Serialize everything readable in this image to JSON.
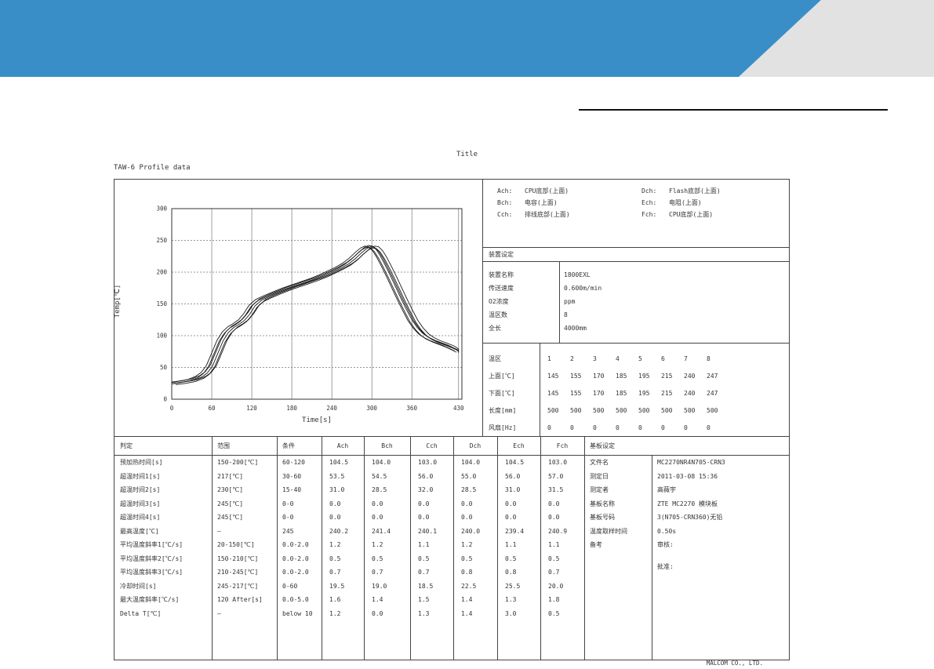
{
  "page": {
    "title": "Title",
    "subtitle": "TAW-6 Profile data",
    "footer": "MALCOM CO., LTD."
  },
  "colors": {
    "banner_blue": "#3a8ec7",
    "banner_gray": "#e2e2e2",
    "line": "#444444",
    "curve": "#1a1a1a"
  },
  "legend": {
    "items": [
      {
        "ch": "Ach:",
        "label": "CPU底部(上面)"
      },
      {
        "ch": "Bch:",
        "label": "电容(上面)"
      },
      {
        "ch": "Cch:",
        "label": "排线底部(上面)"
      },
      {
        "ch": "Dch:",
        "label": "Flash底部(上面)"
      },
      {
        "ch": "Ech:",
        "label": "电阻(上面)"
      },
      {
        "ch": "Fch:",
        "label": "CPU底部(上面)"
      }
    ]
  },
  "device": {
    "title": "装置设定",
    "rows": [
      {
        "label": "装置名称",
        "value": "1800EXL"
      },
      {
        "label": "传送速度",
        "value": "0.600m/min"
      },
      {
        "label": "O2浓度",
        "value": "ppm"
      },
      {
        "label": "温区数",
        "value": "8"
      },
      {
        "label": "全长",
        "value": "4000mm"
      }
    ]
  },
  "zones": {
    "rows": [
      {
        "label": "温区",
        "values": [
          "1",
          "2",
          "3",
          "4",
          "5",
          "6",
          "7",
          "8"
        ]
      },
      {
        "label": "上面[℃]",
        "values": [
          "145",
          "155",
          "170",
          "185",
          "195",
          "215",
          "240",
          "247"
        ]
      },
      {
        "label": "下面[℃]",
        "values": [
          "145",
          "155",
          "170",
          "185",
          "195",
          "215",
          "240",
          "247"
        ]
      },
      {
        "label": "长度[mm]",
        "values": [
          "500",
          "500",
          "500",
          "500",
          "500",
          "500",
          "500",
          "500"
        ]
      },
      {
        "label": "风扇[Hz]",
        "values": [
          "0",
          "0",
          "0",
          "0",
          "0",
          "0",
          "0",
          "0"
        ]
      }
    ]
  },
  "measurements": {
    "headers": [
      "判定",
      "范围",
      "条件",
      "Ach",
      "Bch",
      "Cch",
      "Dch",
      "Ech",
      "Fch"
    ],
    "rows": [
      {
        "label": "预加热时间[s]",
        "range": "150-200[℃]",
        "cond": "60-120",
        "values": [
          "104.5",
          "104.0",
          "103.0",
          "104.0",
          "104.5",
          "103.0"
        ]
      },
      {
        "label": "超温时间1[s]",
        "range": "217[℃]",
        "cond": "30-60",
        "values": [
          "53.5",
          "54.5",
          "56.0",
          "55.0",
          "56.0",
          "57.0"
        ]
      },
      {
        "label": "超温时间2[s]",
        "range": "230[℃]",
        "cond": "15-40",
        "values": [
          "31.0",
          "28.5",
          "32.0",
          "28.5",
          "31.0",
          "31.5"
        ]
      },
      {
        "label": "超温时间3[s]",
        "range": "245[℃]",
        "cond": "0-0",
        "values": [
          "0.0",
          "0.0",
          "0.0",
          "0.0",
          "0.0",
          "0.0"
        ]
      },
      {
        "label": "超温时间4[s]",
        "range": "245[℃]",
        "cond": "0-0",
        "values": [
          "0.0",
          "0.0",
          "0.0",
          "0.0",
          "0.0",
          "0.0"
        ]
      },
      {
        "label": "最高温度[℃]",
        "range": "–",
        "cond": "245",
        "values": [
          "240.2",
          "241.4",
          "240.1",
          "240.0",
          "239.4",
          "240.9"
        ]
      },
      {
        "label": "平均温度斜率1[℃/s]",
        "range": "20-150[℃]",
        "cond": "0.0-2.0",
        "values": [
          "1.2",
          "1.2",
          "1.1",
          "1.2",
          "1.1",
          "1.1"
        ]
      },
      {
        "label": "平均温度斜率2[℃/s]",
        "range": "150-210[℃]",
        "cond": "0.0-2.0",
        "values": [
          "0.5",
          "0.5",
          "0.5",
          "0.5",
          "0.5",
          "0.5"
        ]
      },
      {
        "label": "平均温度斜率3[℃/s]",
        "range": "210-245[℃]",
        "cond": "0.0-2.0",
        "values": [
          "0.7",
          "0.7",
          "0.7",
          "0.8",
          "0.8",
          "0.7"
        ]
      },
      {
        "label": "冷却时间[s]",
        "range": "245-217[℃]",
        "cond": "0-60",
        "values": [
          "19.5",
          "19.0",
          "18.5",
          "22.5",
          "25.5",
          "20.0"
        ]
      },
      {
        "label": "最大温度斜率[℃/s]",
        "range": "120 After[s]",
        "cond": "0.0-5.0",
        "values": [
          "1.6",
          "1.4",
          "1.5",
          "1.4",
          "1.3",
          "1.8"
        ]
      },
      {
        "label": "Delta T[℃]",
        "range": "–",
        "cond": "below 10",
        "values": [
          "1.2",
          "0.0",
          "1.3",
          "1.4",
          "3.0",
          "0.5"
        ]
      }
    ]
  },
  "substrate": {
    "title": "基板设定",
    "rows": [
      {
        "label": "文件名",
        "value": "MC2270NR4N705-CRN3"
      },
      {
        "label": "测定日",
        "value": "2011-03-08  15:36"
      },
      {
        "label": "测定者",
        "value": "高薇宇"
      },
      {
        "label": "基板名称",
        "value": "ZTE MC2270 模块板"
      },
      {
        "label": "基板号码",
        "value": "3(N705-CRN360)无铅"
      },
      {
        "label": "温度取样时间",
        "value": "0.50s"
      },
      {
        "label": "备考",
        "value": "审核:"
      }
    ],
    "approve_label": "批准:"
  },
  "chart_data": {
    "type": "line",
    "title": "TAW-6 Profile data",
    "xlabel": "Time[s]",
    "ylabel": "Temp[℃]",
    "xlim": [
      0,
      435
    ],
    "ylim": [
      0,
      300
    ],
    "xticks": [
      0,
      60,
      120,
      180,
      240,
      300,
      360,
      430
    ],
    "yticks": [
      0,
      50,
      100,
      150,
      200,
      250,
      300
    ],
    "grid": true,
    "legend_position": "none",
    "base_profile": [
      [
        0,
        25
      ],
      [
        15,
        27
      ],
      [
        30,
        30
      ],
      [
        42,
        35
      ],
      [
        50,
        41
      ],
      [
        58,
        52
      ],
      [
        66,
        72
      ],
      [
        74,
        92
      ],
      [
        82,
        105
      ],
      [
        90,
        113
      ],
      [
        98,
        118
      ],
      [
        106,
        124
      ],
      [
        114,
        134
      ],
      [
        122,
        147
      ],
      [
        132,
        156
      ],
      [
        144,
        162
      ],
      [
        158,
        168
      ],
      [
        172,
        174
      ],
      [
        186,
        179
      ],
      [
        200,
        184
      ],
      [
        214,
        189
      ],
      [
        228,
        195
      ],
      [
        240,
        201
      ],
      [
        252,
        207
      ],
      [
        262,
        213
      ],
      [
        272,
        221
      ],
      [
        281,
        230
      ],
      [
        289,
        237
      ],
      [
        295,
        240
      ],
      [
        301,
        239
      ],
      [
        307,
        233
      ],
      [
        313,
        223
      ],
      [
        320,
        209
      ],
      [
        328,
        192
      ],
      [
        336,
        174
      ],
      [
        344,
        156
      ],
      [
        352,
        139
      ],
      [
        360,
        123
      ],
      [
        368,
        111
      ],
      [
        376,
        102
      ],
      [
        384,
        96
      ],
      [
        394,
        91
      ],
      [
        404,
        87
      ],
      [
        414,
        83
      ],
      [
        424,
        78
      ],
      [
        430,
        75
      ]
    ],
    "series": [
      {
        "name": "Ach",
        "dt": -6,
        "dy": 1
      },
      {
        "name": "Bch",
        "dt": -3,
        "dy": -1
      },
      {
        "name": "Cch",
        "dt": 0,
        "dy": 2
      },
      {
        "name": "Dch",
        "dt": 3,
        "dy": 0
      },
      {
        "name": "Ech",
        "dt": 6,
        "dy": -2
      },
      {
        "name": "Fch",
        "dt": 9,
        "dy": 1
      }
    ]
  }
}
